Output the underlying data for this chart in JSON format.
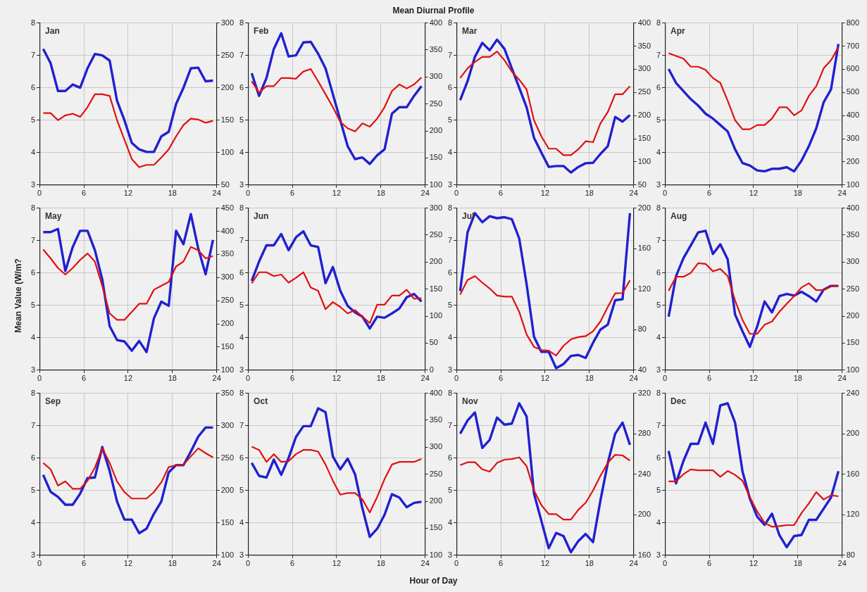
{
  "chart_data": [
    {
      "type": "line",
      "title": "Jan",
      "annotations": [
        "Mean Diurnal Profile"
      ],
      "x": [
        0.5,
        1.5,
        2.5,
        3.5,
        4.5,
        5.5,
        6.5,
        7.5,
        8.5,
        9.5,
        10.5,
        11.5,
        12.5,
        13.5,
        14.5,
        15.5,
        16.5,
        17.5,
        18.5,
        19.5,
        20.5,
        21.5,
        22.5,
        23.5
      ],
      "xlim": [
        0,
        24
      ],
      "xticks": [
        0,
        6,
        12,
        18,
        24
      ],
      "ylim": [
        3,
        8
      ],
      "yticks": [
        3,
        4,
        5,
        6,
        7,
        8
      ],
      "y2lim": [
        50,
        300
      ],
      "y2ticks": [
        50,
        100,
        150,
        200,
        250,
        300
      ],
      "grid": true,
      "series": [
        {
          "color": "#e01010",
          "values": [
            5.22,
            5.22,
            5.0,
            5.15,
            5.2,
            5.1,
            5.4,
            5.8,
            5.8,
            5.75,
            5.0,
            4.4,
            3.8,
            3.55,
            3.62,
            3.62,
            3.85,
            4.1,
            4.5,
            4.85,
            5.05,
            5.02,
            4.92,
            4.98
          ]
        },
        {
          "color": "#2020d0",
          "axis": "y2",
          "values": [
            260,
            238,
            195,
            195,
            205,
            200,
            230,
            252,
            250,
            242,
            180,
            150,
            115,
            105,
            101,
            101,
            125,
            132,
            175,
            200,
            230,
            231,
            210,
            211
          ]
        }
      ]
    },
    {
      "type": "line",
      "title": "Feb",
      "x": [
        0.5,
        1.5,
        2.5,
        3.5,
        4.5,
        5.5,
        6.5,
        7.5,
        8.5,
        9.5,
        10.5,
        11.5,
        12.5,
        13.5,
        14.5,
        15.5,
        16.5,
        17.5,
        18.5,
        19.5,
        20.5,
        21.5,
        22.5,
        23.5
      ],
      "xlim": [
        0,
        24
      ],
      "xticks": [
        0,
        6,
        12,
        18,
        24
      ],
      "ylim": [
        3,
        8
      ],
      "yticks": [
        3,
        4,
        5,
        6,
        7,
        8
      ],
      "y2lim": [
        100,
        400
      ],
      "y2ticks": [
        100,
        150,
        200,
        250,
        300,
        350,
        400
      ],
      "grid": true,
      "series": [
        {
          "color": "#e01010",
          "values": [
            6.2,
            5.85,
            6.05,
            6.05,
            6.3,
            6.3,
            6.28,
            6.5,
            6.58,
            6.2,
            5.8,
            5.4,
            4.95,
            4.75,
            4.65,
            4.9,
            4.8,
            5.05,
            5.4,
            5.9,
            6.1,
            5.98,
            6.1,
            6.32
          ]
        },
        {
          "color": "#2020d0",
          "axis": "y2",
          "values": [
            307,
            265,
            298,
            352,
            381,
            338,
            340,
            364,
            365,
            343,
            316,
            268,
            220,
            172,
            148,
            151,
            139,
            155,
            166,
            232,
            244,
            244,
            265,
            283
          ]
        }
      ]
    },
    {
      "type": "line",
      "title": "Mar",
      "x": [
        0.5,
        1.5,
        2.5,
        3.5,
        4.5,
        5.5,
        6.5,
        7.5,
        8.5,
        9.5,
        10.5,
        11.5,
        12.5,
        13.5,
        14.5,
        15.5,
        16.5,
        17.5,
        18.5,
        19.5,
        20.5,
        21.5,
        22.5,
        23.5
      ],
      "xlim": [
        0,
        24
      ],
      "xticks": [
        0,
        6,
        12,
        18,
        24
      ],
      "ylim": [
        3,
        8
      ],
      "yticks": [
        3,
        4,
        5,
        6,
        7,
        8
      ],
      "y2lim": [
        50,
        400
      ],
      "y2ticks": [
        50,
        100,
        150,
        200,
        250,
        300,
        350,
        400
      ],
      "grid": true,
      "series": [
        {
          "color": "#e01010",
          "values": [
            6.3,
            6.6,
            6.8,
            6.95,
            6.95,
            7.12,
            6.85,
            6.5,
            6.25,
            5.95,
            5.0,
            4.5,
            4.12,
            4.12,
            3.92,
            3.92,
            4.1,
            4.35,
            4.32,
            4.9,
            5.25,
            5.8,
            5.8,
            6.05
          ]
        },
        {
          "color": "#2020d0",
          "axis": "y2",
          "values": [
            233,
            274,
            327,
            357,
            341,
            364,
            344,
            302,
            260,
            218,
            152,
            120,
            89,
            91,
            91,
            77,
            89,
            97,
            98,
            117,
            134,
            197,
            187,
            201
          ]
        }
      ]
    },
    {
      "type": "line",
      "title": "Apr",
      "x": [
        0.5,
        1.5,
        2.5,
        3.5,
        4.5,
        5.5,
        6.5,
        7.5,
        8.5,
        9.5,
        10.5,
        11.5,
        12.5,
        13.5,
        14.5,
        15.5,
        16.5,
        17.5,
        18.5,
        19.5,
        20.5,
        21.5,
        22.5,
        23.5
      ],
      "xlim": [
        0,
        24
      ],
      "xticks": [
        0,
        6,
        12,
        18,
        24
      ],
      "ylim": [
        3,
        8
      ],
      "yticks": [
        3,
        4,
        5,
        6,
        7,
        8
      ],
      "y2lim": [
        100,
        800
      ],
      "y2ticks": [
        100,
        200,
        300,
        400,
        500,
        600,
        700,
        800
      ],
      "grid": true,
      "series": [
        {
          "color": "#e01010",
          "values": [
            7.07,
            6.98,
            6.9,
            6.65,
            6.65,
            6.55,
            6.3,
            6.15,
            5.6,
            5.0,
            4.72,
            4.72,
            4.85,
            4.85,
            5.05,
            5.4,
            5.4,
            5.15,
            5.3,
            5.75,
            6.05,
            6.6,
            6.85,
            7.25
          ]
        },
        {
          "color": "#2020d0",
          "axis": "y2",
          "values": [
            601,
            541,
            506,
            471,
            443,
            408,
            387,
            359,
            331,
            254,
            195,
            184,
            163,
            159,
            170,
            170,
            177,
            159,
            205,
            268,
            345,
            457,
            513,
            709
          ]
        }
      ]
    },
    {
      "type": "line",
      "title": "May",
      "ylabel": "Mean Value (W/m?",
      "x": [
        0.5,
        1.5,
        2.5,
        3.5,
        4.5,
        5.5,
        6.5,
        7.5,
        8.5,
        9.5,
        10.5,
        11.5,
        12.5,
        13.5,
        14.5,
        15.5,
        16.5,
        17.5,
        18.5,
        19.5,
        20.5,
        21.5,
        22.5,
        23.5
      ],
      "xlim": [
        0,
        24
      ],
      "xticks": [
        0,
        6,
        12,
        18,
        24
      ],
      "ylim": [
        3,
        8
      ],
      "yticks": [
        3,
        4,
        5,
        6,
        7,
        8
      ],
      "y2lim": [
        100,
        450
      ],
      "y2ticks": [
        100,
        150,
        200,
        250,
        300,
        350,
        400,
        450
      ],
      "grid": true,
      "series": [
        {
          "color": "#e01010",
          "values": [
            6.72,
            6.45,
            6.15,
            5.95,
            6.15,
            6.4,
            6.6,
            6.35,
            5.6,
            4.75,
            4.55,
            4.55,
            4.8,
            5.05,
            5.05,
            5.48,
            5.6,
            5.72,
            6.2,
            6.35,
            6.8,
            6.7,
            6.45,
            6.52
          ]
        },
        {
          "color": "#2020d0",
          "axis": "y2",
          "values": [
            398,
            398,
            405,
            314,
            366,
            401,
            401,
            359,
            296,
            195,
            165,
            162,
            142,
            163,
            139,
            212,
            248,
            239,
            401,
            372,
            437,
            363,
            307,
            381
          ]
        }
      ]
    },
    {
      "type": "line",
      "title": "Jun",
      "x": [
        0.5,
        1.5,
        2.5,
        3.5,
        4.5,
        5.5,
        6.5,
        7.5,
        8.5,
        9.5,
        10.5,
        11.5,
        12.5,
        13.5,
        14.5,
        15.5,
        16.5,
        17.5,
        18.5,
        19.5,
        20.5,
        21.5,
        22.5,
        23.5
      ],
      "xlim": [
        0,
        24
      ],
      "xticks": [
        0,
        6,
        12,
        18,
        24
      ],
      "ylim": [
        3,
        8
      ],
      "yticks": [
        3,
        4,
        5,
        6,
        7,
        8
      ],
      "y2lim": [
        0,
        300
      ],
      "y2ticks": [
        0,
        50,
        100,
        150,
        200,
        250,
        300
      ],
      "grid": true,
      "series": [
        {
          "color": "#e01010",
          "values": [
            5.68,
            6.02,
            6.02,
            5.9,
            5.95,
            5.7,
            5.85,
            6.02,
            5.55,
            5.45,
            4.88,
            5.1,
            4.95,
            4.75,
            4.85,
            4.65,
            4.45,
            5.02,
            5.02,
            5.3,
            5.3,
            5.48,
            5.2,
            5.22
          ]
        },
        {
          "color": "#2020d0",
          "axis": "y2",
          "values": [
            165,
            201,
            231,
            231,
            252,
            222,
            246,
            257,
            231,
            228,
            161,
            191,
            147,
            119,
            107,
            99,
            77,
            99,
            97,
            105,
            114,
            135,
            141,
            127
          ]
        }
      ]
    },
    {
      "type": "line",
      "title": "Jul",
      "x": [
        0.5,
        1.5,
        2.5,
        3.5,
        4.5,
        5.5,
        6.5,
        7.5,
        8.5,
        9.5,
        10.5,
        11.5,
        12.5,
        13.5,
        14.5,
        15.5,
        16.5,
        17.5,
        18.5,
        19.5,
        20.5,
        21.5,
        22.5,
        23.5
      ],
      "xlim": [
        0,
        24
      ],
      "xticks": [
        0,
        6,
        12,
        18,
        24
      ],
      "ylim": [
        3,
        8
      ],
      "yticks": [
        3,
        4,
        5,
        6,
        7,
        8
      ],
      "y2lim": [
        40,
        200
      ],
      "y2ticks": [
        40,
        80,
        120,
        160,
        200
      ],
      "grid": true,
      "series": [
        {
          "color": "#e01010",
          "values": [
            5.33,
            5.78,
            5.9,
            5.7,
            5.52,
            5.3,
            5.27,
            5.27,
            4.8,
            4.1,
            3.72,
            3.62,
            3.6,
            3.45,
            3.75,
            3.95,
            4.02,
            4.05,
            4.2,
            4.5,
            4.95,
            5.37,
            5.38,
            5.77
          ]
        },
        {
          "color": "#2020d0",
          "axis": "y2",
          "values": [
            118,
            176,
            195,
            186,
            192,
            190,
            191,
            189,
            170,
            125,
            73,
            58,
            58,
            42,
            46,
            54,
            55,
            52,
            67,
            80,
            85,
            109,
            110,
            195
          ]
        }
      ]
    },
    {
      "type": "line",
      "title": "Aug",
      "x": [
        0.5,
        1.5,
        2.5,
        3.5,
        4.5,
        5.5,
        6.5,
        7.5,
        8.5,
        9.5,
        10.5,
        11.5,
        12.5,
        13.5,
        14.5,
        15.5,
        16.5,
        17.5,
        18.5,
        19.5,
        20.5,
        21.5,
        22.5,
        23.5
      ],
      "xlim": [
        0,
        24
      ],
      "xticks": [
        0,
        6,
        12,
        18,
        24
      ],
      "ylim": [
        3,
        8
      ],
      "yticks": [
        3,
        4,
        5,
        6,
        7,
        8
      ],
      "y2lim": [
        100,
        400
      ],
      "y2ticks": [
        100,
        150,
        200,
        250,
        300,
        350,
        400
      ],
      "grid": true,
      "series": [
        {
          "color": "#e01010",
          "values": [
            5.45,
            5.88,
            5.88,
            6.0,
            6.3,
            6.28,
            6.05,
            6.12,
            5.9,
            5.15,
            4.55,
            4.12,
            4.12,
            4.4,
            4.5,
            4.8,
            5.05,
            5.28,
            5.55,
            5.68,
            5.47,
            5.47,
            5.58,
            5.6
          ]
        },
        {
          "color": "#2020d0",
          "axis": "y2",
          "values": [
            199,
            274,
            307,
            331,
            355,
            358,
            315,
            333,
            305,
            203,
            172,
            143,
            181,
            227,
            207,
            237,
            241,
            238,
            245,
            237,
            227,
            249,
            256,
            256
          ]
        }
      ]
    },
    {
      "type": "line",
      "title": "Sep",
      "x": [
        0.5,
        1.5,
        2.5,
        3.5,
        4.5,
        5.5,
        6.5,
        7.5,
        8.5,
        9.5,
        10.5,
        11.5,
        12.5,
        13.5,
        14.5,
        15.5,
        16.5,
        17.5,
        18.5,
        19.5,
        20.5,
        21.5,
        22.5,
        23.5
      ],
      "xlim": [
        0,
        24
      ],
      "xticks": [
        0,
        6,
        12,
        18,
        24
      ],
      "ylim": [
        3,
        8
      ],
      "yticks": [
        3,
        4,
        5,
        6,
        7,
        8
      ],
      "y2lim": [
        100,
        350
      ],
      "y2ticks": [
        100,
        150,
        200,
        250,
        300,
        350
      ],
      "grid": true,
      "series": [
        {
          "color": "#e01010",
          "values": [
            5.85,
            5.65,
            5.15,
            5.28,
            5.05,
            5.05,
            5.3,
            5.7,
            6.3,
            5.85,
            5.28,
            4.95,
            4.75,
            4.75,
            4.75,
            4.95,
            5.25,
            5.72,
            5.78,
            5.8,
            6.05,
            6.3,
            6.15,
            6.02
          ]
        },
        {
          "color": "#2020d0",
          "axis": "y2",
          "values": [
            224,
            198,
            190,
            178,
            178,
            195,
            219,
            220,
            267,
            230,
            183,
            155,
            155,
            134,
            141,
            164,
            183,
            228,
            239,
            239,
            260,
            283,
            297,
            297
          ]
        }
      ]
    },
    {
      "type": "line",
      "title": "Oct",
      "xlabel": "Hour of Day",
      "x": [
        0.5,
        1.5,
        2.5,
        3.5,
        4.5,
        5.5,
        6.5,
        7.5,
        8.5,
        9.5,
        10.5,
        11.5,
        12.5,
        13.5,
        14.5,
        15.5,
        16.5,
        17.5,
        18.5,
        19.5,
        20.5,
        21.5,
        22.5,
        23.5
      ],
      "xlim": [
        0,
        24
      ],
      "xticks": [
        0,
        6,
        12,
        18,
        24
      ],
      "ylim": [
        3,
        8
      ],
      "yticks": [
        3,
        4,
        5,
        6,
        7,
        8
      ],
      "y2lim": [
        100,
        400
      ],
      "y2ticks": [
        100,
        150,
        200,
        250,
        300,
        350,
        400
      ],
      "grid": true,
      "series": [
        {
          "color": "#e01010",
          "values": [
            6.35,
            6.25,
            5.88,
            6.12,
            5.88,
            5.9,
            6.12,
            6.25,
            6.25,
            6.2,
            5.8,
            5.3,
            4.87,
            4.92,
            4.92,
            4.72,
            4.32,
            4.8,
            5.35,
            5.8,
            5.88,
            5.88,
            5.88,
            5.97
          ]
        },
        {
          "color": "#2020d0",
          "axis": "y2",
          "values": [
            271,
            247,
            244,
            277,
            249,
            280,
            319,
            339,
            339,
            372,
            365,
            283,
            259,
            279,
            250,
            187,
            134,
            149,
            175,
            213,
            207,
            189,
            197,
            199
          ]
        }
      ]
    },
    {
      "type": "line",
      "title": "Nov",
      "x": [
        0.5,
        1.5,
        2.5,
        3.5,
        4.5,
        5.5,
        6.5,
        7.5,
        8.5,
        9.5,
        10.5,
        11.5,
        12.5,
        13.5,
        14.5,
        15.5,
        16.5,
        17.5,
        18.5,
        19.5,
        20.5,
        21.5,
        22.5,
        23.5
      ],
      "xlim": [
        0,
        24
      ],
      "xticks": [
        0,
        6,
        12,
        18,
        24
      ],
      "ylim": [
        3,
        8
      ],
      "yticks": [
        3,
        4,
        5,
        6,
        7,
        8
      ],
      "y2lim": [
        160,
        320
      ],
      "y2ticks": [
        160,
        200,
        240,
        280,
        320
      ],
      "grid": true,
      "series": [
        {
          "color": "#e01010",
          "values": [
            5.78,
            5.87,
            5.87,
            5.65,
            5.58,
            5.85,
            5.95,
            5.97,
            6.02,
            5.75,
            5.0,
            4.55,
            4.27,
            4.27,
            4.1,
            4.1,
            4.4,
            4.62,
            5.0,
            5.45,
            5.85,
            6.1,
            6.08,
            5.92
          ]
        },
        {
          "color": "#2020d0",
          "axis": "y2",
          "values": [
            280,
            293,
            301,
            266,
            274,
            296,
            289,
            290,
            310,
            297,
            221,
            194,
            167,
            182,
            179,
            163,
            174,
            181,
            173,
            214,
            251,
            280,
            291,
            269
          ]
        }
      ]
    },
    {
      "type": "line",
      "title": "Dec",
      "x": [
        0.5,
        1.5,
        2.5,
        3.5,
        4.5,
        5.5,
        6.5,
        7.5,
        8.5,
        9.5,
        10.5,
        11.5,
        12.5,
        13.5,
        14.5,
        15.5,
        16.5,
        17.5,
        18.5,
        19.5,
        20.5,
        21.5,
        22.5,
        23.5
      ],
      "xlim": [
        0,
        24
      ],
      "xticks": [
        0,
        6,
        12,
        18,
        24
      ],
      "ylim": [
        3,
        8
      ],
      "yticks": [
        3,
        4,
        5,
        6,
        7,
        8
      ],
      "y2lim": [
        80,
        240
      ],
      "y2ticks": [
        80,
        120,
        160,
        200,
        240
      ],
      "grid": true,
      "series": [
        {
          "color": "#e01010",
          "values": [
            5.28,
            5.28,
            5.5,
            5.65,
            5.62,
            5.62,
            5.62,
            5.42,
            5.6,
            5.48,
            5.3,
            4.8,
            4.35,
            4.0,
            3.88,
            3.9,
            3.93,
            3.93,
            4.3,
            4.6,
            4.95,
            4.72,
            4.85,
            4.82
          ]
        },
        {
          "color": "#2020d0",
          "axis": "y2",
          "values": [
            183,
            151,
            173,
            190,
            190,
            211,
            190,
            228,
            230,
            211,
            163,
            136,
            118,
            110,
            121,
            100,
            88,
            99,
            100,
            115,
            115,
            126,
            137,
            163
          ]
        }
      ]
    }
  ]
}
